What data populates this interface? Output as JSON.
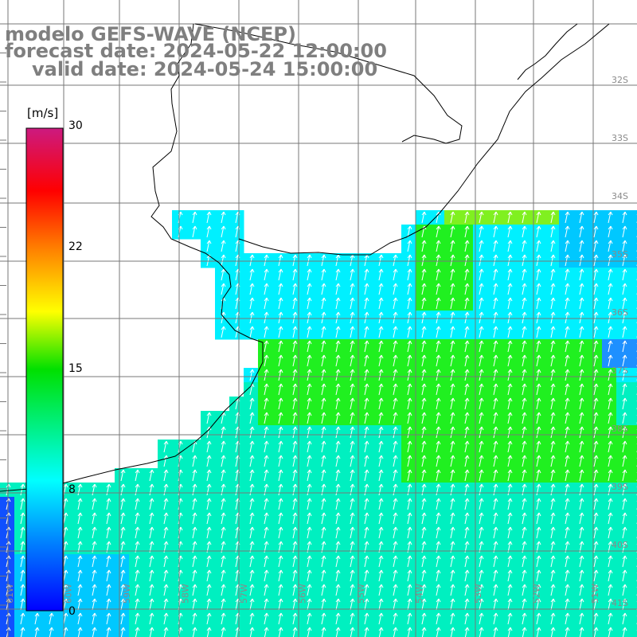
{
  "title": {
    "model": "modelo GEFS-WAVE (NCEP)",
    "forecast": "forecast date: 2024-05-22 12:00:00",
    "valid": "valid date: 2024-05-24 15:00:00"
  },
  "colorbar": {
    "units": "[m/s]",
    "min": 0,
    "max": 30,
    "ticks": [
      "30",
      "22",
      "15",
      "8",
      "0"
    ]
  },
  "latitude_labels": [
    "32S",
    "33S",
    "34S",
    "35S",
    "36S",
    "37S",
    "38S",
    "39S",
    "40S",
    "41S"
  ],
  "longitude_labels": [
    "61W",
    "60W",
    "59W",
    "58W",
    "57W",
    "56W",
    "55W",
    "54W",
    "53W",
    "52W",
    "51W"
  ],
  "wind_field": {
    "description_free": true,
    "colors": {
      "deep_blue": "#1050ff",
      "blue": "#1e90ff",
      "sky": "#00c8ff",
      "cyan": "#00f0ff",
      "aqua_green": "#00f0c0",
      "green": "#20f020",
      "lime": "#80f020"
    }
  }
}
